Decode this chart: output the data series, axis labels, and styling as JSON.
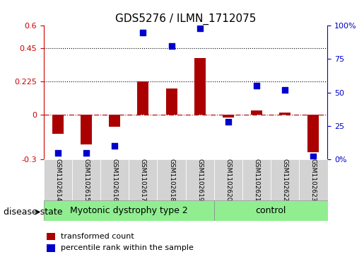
{
  "title": "GDS5276 / ILMN_1712075",
  "samples": [
    "GSM1102614",
    "GSM1102615",
    "GSM1102616",
    "GSM1102617",
    "GSM1102618",
    "GSM1102619",
    "GSM1102620",
    "GSM1102621",
    "GSM1102622",
    "GSM1102623"
  ],
  "transformed_count": [
    -0.13,
    -0.2,
    -0.08,
    0.225,
    0.175,
    0.38,
    -0.02,
    0.03,
    0.015,
    -0.25
  ],
  "percentile_rank": [
    5,
    5,
    10,
    95,
    85,
    98,
    28,
    55,
    52,
    2
  ],
  "disease_groups": [
    {
      "label": "Myotonic dystrophy type 2",
      "start": 0,
      "end": 6,
      "color": "#90EE90"
    },
    {
      "label": "control",
      "start": 6,
      "end": 10,
      "color": "#90EE90"
    }
  ],
  "ylim_left": [
    -0.3,
    0.6
  ],
  "ylim_right": [
    0,
    100
  ],
  "yticks_left": [
    -0.3,
    0,
    0.225,
    0.45,
    0.6
  ],
  "yticks_right": [
    0,
    25,
    50,
    75,
    100
  ],
  "ytick_labels_left": [
    "-0.3",
    "0",
    "0.225",
    "0.45",
    "0.6"
  ],
  "ytick_labels_right": [
    "0%",
    "25",
    "50",
    "75",
    "100%"
  ],
  "hlines": [
    0.225,
    0.45
  ],
  "zero_line": 0,
  "bar_color": "#AA0000",
  "dot_color": "#0000CC",
  "bar_width": 0.4,
  "dot_size": 40,
  "legend_items": [
    "transformed count",
    "percentile rank within the sample"
  ],
  "disease_state_label": "disease state",
  "bg_color": "#FFFFFF",
  "plot_bg_color": "#FFFFFF",
  "tick_label_color_left": "#CC0000",
  "tick_label_color_right": "#0000CC",
  "fontsize_title": 11,
  "fontsize_ticks": 8,
  "fontsize_labels": 8,
  "fontsize_legend": 8,
  "fontsize_disease": 9
}
